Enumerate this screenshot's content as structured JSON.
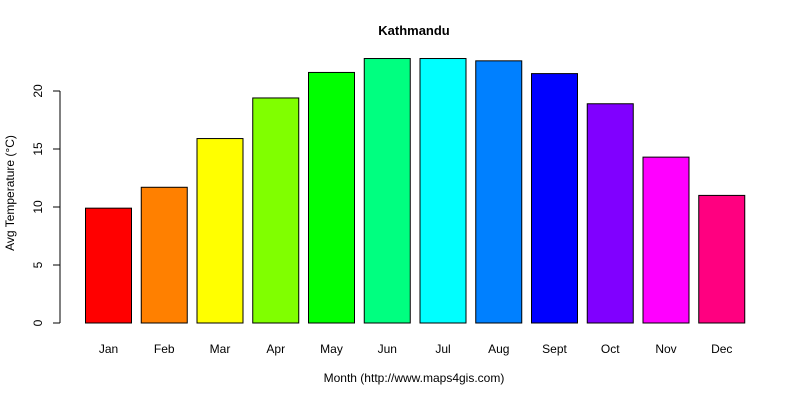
{
  "chart_data": {
    "type": "bar",
    "title": "Kathmandu",
    "xlabel": "Month (http://www.maps4gis.com)",
    "ylabel": "Avg Temperature (°C)",
    "categories": [
      "Jan",
      "Feb",
      "Mar",
      "Apr",
      "May",
      "Jun",
      "Jul",
      "Aug",
      "Sept",
      "Oct",
      "Nov",
      "Dec"
    ],
    "values": [
      9.9,
      11.7,
      15.9,
      19.4,
      21.6,
      22.8,
      22.8,
      22.6,
      21.5,
      18.9,
      14.3,
      11.0
    ],
    "colors": [
      "#FF0000",
      "#FF8000",
      "#FFFF00",
      "#80FF00",
      "#00FF00",
      "#00FF80",
      "#00FFFF",
      "#0080FF",
      "#0000FF",
      "#8000FF",
      "#FF00FF",
      "#FF0080"
    ],
    "yticks": [
      0,
      5,
      10,
      15,
      20
    ],
    "ylim": [
      0,
      22.8
    ],
    "grid": false,
    "legend": "none"
  }
}
